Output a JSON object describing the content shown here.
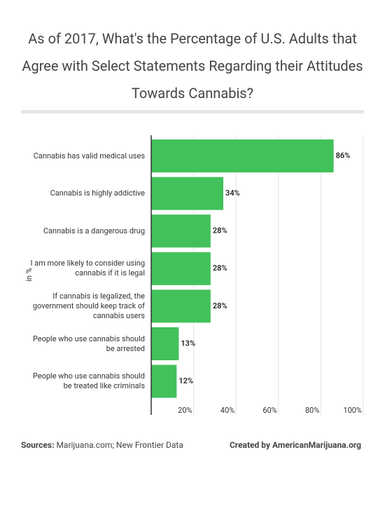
{
  "chart_data": {
    "type": "bar",
    "orientation": "horizontal",
    "title": "As of 2017, What's the Percentage of U.S. Adults that Agree with Select Statements Regarding their Attitudes Towards Cannabis?",
    "y_label": "in %",
    "categories": [
      "Cannabis has valid medical uses",
      "Cannabis is highly addictive",
      "Cannabis is a dangerous drug",
      "I am more likely to consider using cannabis if it is legal",
      "If cannabis is legalized, the government should keep track of cannabis users",
      "People who use cannabis should be arrested",
      "People who use cannabis should be treated like criminals"
    ],
    "values": [
      86,
      34,
      28,
      28,
      28,
      13,
      12
    ],
    "value_labels": [
      "86%",
      "34%",
      "28%",
      "28%",
      "28%",
      "13%",
      "12%"
    ],
    "color": "#42c15a",
    "xlim": [
      0,
      100
    ],
    "xticks": [
      {
        "value": 20,
        "label": "20%"
      },
      {
        "value": 40,
        "label": "40%"
      },
      {
        "value": 60,
        "label": "60%"
      },
      {
        "value": 80,
        "label": "80%"
      },
      {
        "value": 100,
        "label": "100%"
      }
    ],
    "grid": true,
    "source_label": "Sources:",
    "source": "Marijuana.com; New Frontier Data",
    "credit": "Created by AmericanMarijuana.org"
  }
}
